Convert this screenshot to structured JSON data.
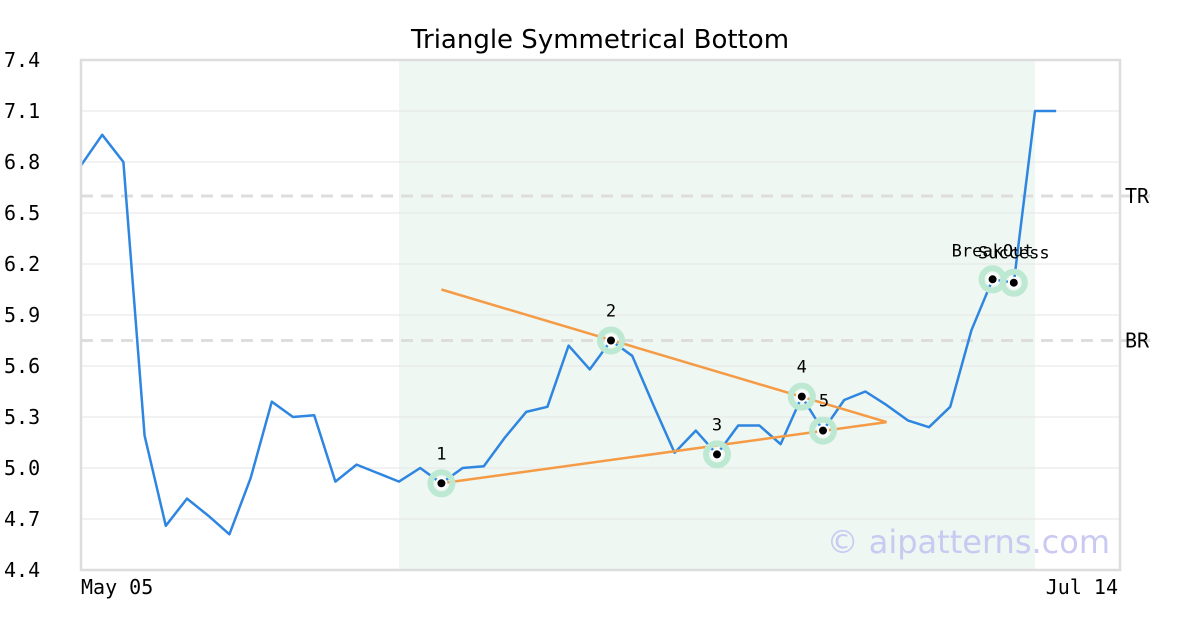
{
  "chart_data": {
    "type": "line",
    "title": "Triangle Symmetrical Bottom",
    "xlabel": "",
    "ylabel": "",
    "x_tick_labels": [
      "May 05",
      "Jul 14"
    ],
    "y_ticks": [
      4.4,
      4.7,
      5.0,
      5.3,
      5.6,
      5.9,
      6.2,
      6.5,
      6.8,
      7.1,
      7.4
    ],
    "ylim": [
      4.4,
      7.4
    ],
    "grid": "horizontal",
    "colors": {
      "line": "#2e86e0",
      "trendline": "#f59a45",
      "highlight": "#eef7f2",
      "marker_ring": "#bde8d2",
      "level_line": "#dddddd",
      "frame": "#dddddd"
    },
    "series": [
      {
        "values": [
          6.78,
          6.96,
          6.8,
          5.19,
          4.66,
          4.82,
          4.72,
          4.61,
          4.94,
          5.39,
          5.3,
          5.31,
          4.92,
          5.02,
          4.97,
          4.92,
          5.0,
          4.91,
          5.0,
          5.01,
          5.18,
          5.33,
          5.36,
          5.72,
          5.58,
          5.75,
          5.66,
          5.37,
          5.09,
          5.22,
          5.08,
          5.25,
          5.25,
          5.14,
          5.42,
          5.22,
          5.4,
          5.45,
          5.37,
          5.28,
          5.24,
          5.36,
          5.81,
          6.11,
          6.09,
          7.1,
          7.1
        ]
      }
    ],
    "highlight_range": {
      "start_index": 15,
      "end_index": 45
    },
    "trendlines": [
      {
        "from": {
          "index": 17,
          "value": 6.05
        },
        "to": {
          "index": 38,
          "value": 5.27
        }
      },
      {
        "from": {
          "index": 17,
          "value": 4.91
        },
        "to": {
          "index": 38,
          "value": 5.27
        }
      }
    ],
    "pattern_points": [
      {
        "label": "1",
        "index": 17,
        "value": 4.91
      },
      {
        "label": "2",
        "index": 25,
        "value": 5.75
      },
      {
        "label": "3",
        "index": 30,
        "value": 5.08
      },
      {
        "label": "4",
        "index": 34,
        "value": 5.42
      },
      {
        "label": "5",
        "index": 35,
        "value": 5.22
      },
      {
        "label": "BreakOut",
        "index": 43,
        "value": 6.11
      },
      {
        "label": "Success",
        "index": 44,
        "value": 6.09
      }
    ],
    "levels": [
      {
        "label": "TR",
        "value": 6.6
      },
      {
        "label": "BR",
        "value": 5.75
      }
    ],
    "watermark": "© aipatterns.com"
  }
}
